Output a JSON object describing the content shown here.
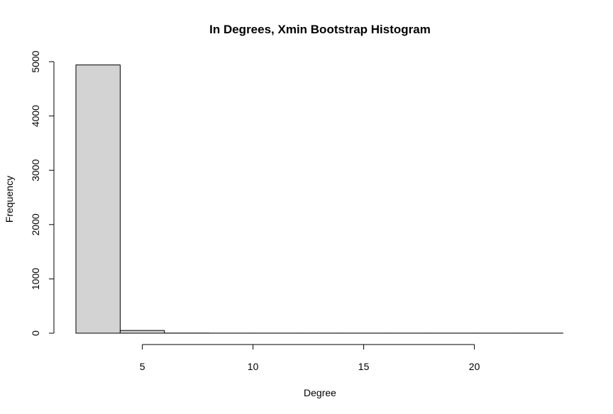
{
  "chart_data": {
    "type": "bar",
    "subtype": "histogram",
    "title": "In Degrees, Xmin Bootstrap Histogram",
    "xlabel": "Degree",
    "ylabel": "Frequency",
    "bins": [
      {
        "x0": 2,
        "x1": 4,
        "count": 4940
      },
      {
        "x0": 4,
        "x1": 6,
        "count": 50
      },
      {
        "x0": 6,
        "x1": 8,
        "count": 2
      },
      {
        "x0": 8,
        "x1": 10,
        "count": 1
      },
      {
        "x0": 10,
        "x1": 12,
        "count": 1
      },
      {
        "x0": 12,
        "x1": 14,
        "count": 1
      },
      {
        "x0": 14,
        "x1": 16,
        "count": 1
      },
      {
        "x0": 16,
        "x1": 18,
        "count": 1
      },
      {
        "x0": 18,
        "x1": 20,
        "count": 1
      },
      {
        "x0": 20,
        "x1": 22,
        "count": 1
      },
      {
        "x0": 22,
        "x1": 24,
        "count": 1
      }
    ],
    "xticks": [
      5,
      10,
      15,
      20
    ],
    "yticks": [
      0,
      1000,
      2000,
      3000,
      4000,
      5000
    ],
    "xlim": [
      2,
      24
    ],
    "ylim": [
      0,
      5000
    ],
    "bar_fill": "#d3d3d3",
    "bar_stroke": "#000000",
    "grid": false,
    "legend": "none"
  }
}
